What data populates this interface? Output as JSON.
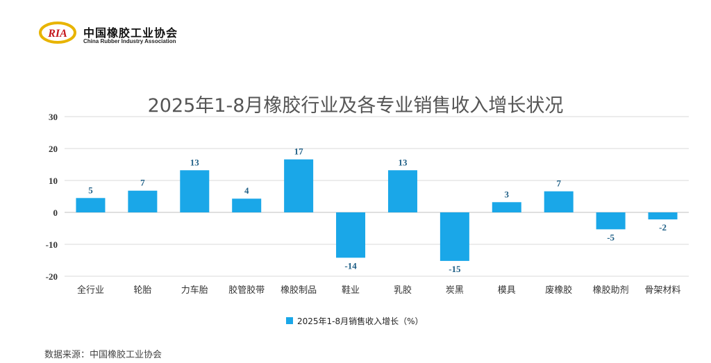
{
  "header": {
    "logo_text": "RIA",
    "org_name_cn": "中国橡胶工业协会",
    "org_name_en": "China Rubber Industry Association"
  },
  "footer": {
    "source": "数据来源：中国橡胶工业协会"
  },
  "colors": {
    "bar": "#1aa7e8",
    "label": "#1f5f86",
    "grid": "#d9d9d9",
    "axis": "#333333"
  },
  "chart_data": {
    "type": "bar",
    "title": "2025年1-8月橡胶行业及各专业销售收入增长状况",
    "categories": [
      "全行业",
      "轮胎",
      "力车胎",
      "胶管胶带",
      "橡胶制品",
      "鞋业",
      "乳胶",
      "炭黑",
      "模具",
      "废橡胶",
      "橡胶助剂",
      "骨架材料"
    ],
    "series": [
      {
        "name": "2025年1-8月销售收入增长（%）",
        "values": [
          4.5,
          6.8,
          13.2,
          4.3,
          16.6,
          -14.2,
          13.2,
          -15.2,
          3.2,
          6.6,
          -5.3,
          -2.2
        ]
      }
    ],
    "data_labels": [
      "5",
      "7",
      "13",
      "4",
      "17",
      "-14",
      "13",
      "-15",
      "3",
      "7",
      "-5",
      "-2"
    ],
    "yticks": [
      "30",
      "20",
      "10",
      "0",
      "-10",
      "-20"
    ],
    "ylim": [
      -20,
      30
    ],
    "grid": true,
    "legend_position": "bottom"
  }
}
